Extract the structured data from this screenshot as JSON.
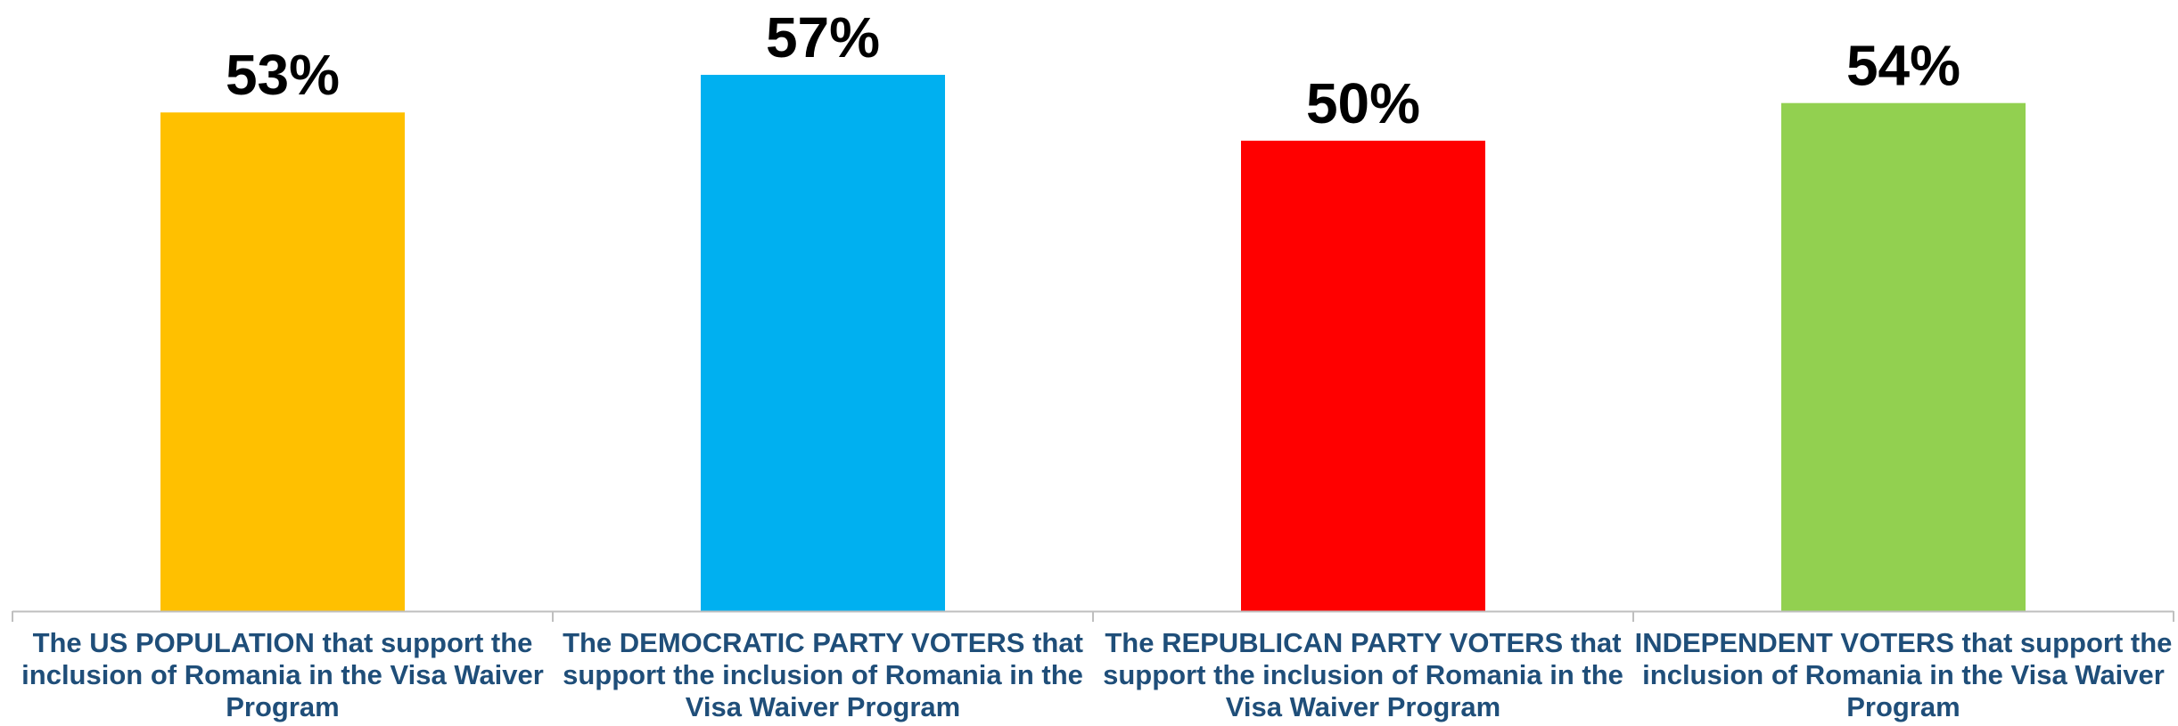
{
  "chart_data": {
    "type": "bar",
    "title": "",
    "xlabel": "",
    "ylabel": "",
    "ylim": [
      0,
      0.57
    ],
    "grid": false,
    "legend": "none",
    "categories": [
      "The US POPULATION that support the inclusion of Romania in the Visa Waiver Program",
      "The DEMOCRATIC PARTY VOTERS that support the inclusion of Romania in the Visa Waiver Program",
      "The REPUBLICAN PARTY VOTERS that support the inclusion of Romania in the Visa Waiver Program",
      "INDEPENDENT VOTERS that support the inclusion of Romania in the Visa Waiver Program"
    ],
    "values": [
      0.53,
      0.57,
      0.5,
      0.54
    ],
    "data_labels": [
      "53%",
      "57%",
      "50%",
      "54%"
    ],
    "colors": [
      "#FFC000",
      "#00B0F0",
      "#FF0000",
      "#92D050"
    ],
    "axis_color": "#BFBFBF",
    "label_color": "#1F4E79"
  }
}
